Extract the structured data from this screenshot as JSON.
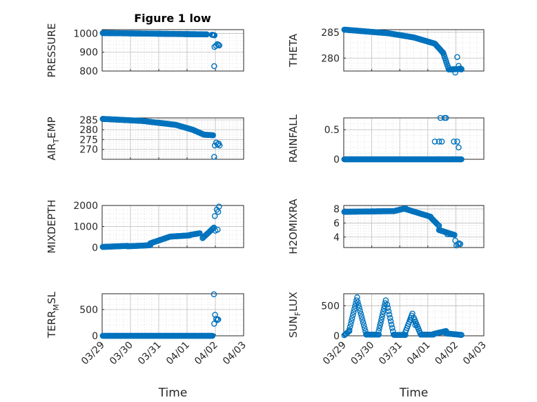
{
  "title": "Figure 1 low",
  "chart_data": [
    {
      "type": "scatter",
      "title": "Figure 1 low",
      "ylabel": "PRESSURE",
      "ylabel_sub": "",
      "ylabel_tail": "",
      "ylim": [
        800,
        1020
      ],
      "yticks": [
        800,
        900,
        1000
      ],
      "xlim": [
        0,
        5
      ],
      "xticks": [
        0,
        1,
        2,
        3,
        4,
        5
      ],
      "xticklabels": [
        "03/29",
        "03/30",
        "03/31",
        "04/01",
        "04/02",
        "04/03"
      ],
      "show_xticklabels": false,
      "xlabel": "",
      "grid": true,
      "segments": [
        {
          "x0": 0.02,
          "x1": 3.7,
          "y0": 1002,
          "y1": 995,
          "n": 190
        },
        {
          "x0": 3.88,
          "x1": 3.97,
          "y0": 993,
          "y1": 990,
          "n": 6
        }
      ],
      "points": [
        [
          3.96,
          826
        ],
        [
          3.97,
          928
        ],
        [
          4.02,
          935
        ],
        [
          4.07,
          943
        ],
        [
          4.11,
          940
        ],
        [
          4.14,
          936
        ]
      ]
    },
    {
      "type": "scatter",
      "title": "",
      "ylabel": "THETA",
      "ylabel_sub": "",
      "ylabel_tail": "",
      "ylim": [
        277.5,
        285.5
      ],
      "yticks": [
        280,
        285
      ],
      "xlim": [
        0,
        5
      ],
      "xticks": [
        0,
        1,
        2,
        3,
        4,
        5
      ],
      "xticklabels": [
        "03/29",
        "03/30",
        "03/31",
        "04/01",
        "04/02",
        "04/03"
      ],
      "show_xticklabels": false,
      "xlabel": "",
      "grid": true,
      "segments": [
        {
          "x0": 0.02,
          "x1": 1.6,
          "y0": 285.5,
          "y1": 284.8,
          "n": 70
        },
        {
          "x0": 1.6,
          "x1": 2.5,
          "y0": 284.8,
          "y1": 284.0,
          "n": 40
        },
        {
          "x0": 2.5,
          "x1": 3.25,
          "y0": 284.0,
          "y1": 282.8,
          "n": 32
        },
        {
          "x0": 3.25,
          "x1": 3.55,
          "y0": 282.8,
          "y1": 281.0,
          "n": 14
        },
        {
          "x0": 3.55,
          "x1": 3.75,
          "y0": 281.0,
          "y1": 277.8,
          "n": 10
        },
        {
          "x0": 3.75,
          "x1": 4.2,
          "y0": 277.8,
          "y1": 277.9,
          "n": 18
        }
      ],
      "points": [
        [
          3.98,
          277.2
        ],
        [
          4.05,
          280.2
        ],
        [
          4.1,
          278.5
        ],
        [
          4.15,
          278.0
        ],
        [
          4.2,
          277.8
        ]
      ]
    },
    {
      "type": "scatter",
      "title": "",
      "ylabel": "AIR",
      "ylabel_sub": "T",
      "ylabel_tail": "EMP",
      "ylim": [
        265,
        286
      ],
      "yticks": [
        270,
        275,
        280,
        285
      ],
      "xlim": [
        0,
        5
      ],
      "xticks": [
        0,
        1,
        2,
        3,
        4,
        5
      ],
      "xticklabels": [
        "03/29",
        "03/30",
        "03/31",
        "04/01",
        "04/02",
        "04/03"
      ],
      "show_xticklabels": false,
      "xlabel": "",
      "grid": true,
      "segments": [
        {
          "x0": 0.02,
          "x1": 1.4,
          "y0": 285.5,
          "y1": 284.5,
          "n": 60
        },
        {
          "x0": 1.4,
          "x1": 2.6,
          "y0": 284.5,
          "y1": 282.5,
          "n": 50
        },
        {
          "x0": 2.6,
          "x1": 3.2,
          "y0": 282.5,
          "y1": 280.0,
          "n": 26
        },
        {
          "x0": 3.2,
          "x1": 3.6,
          "y0": 280.0,
          "y1": 277.5,
          "n": 18
        },
        {
          "x0": 3.6,
          "x1": 3.92,
          "y0": 277.5,
          "y1": 277.2,
          "n": 14
        }
      ],
      "points": [
        [
          3.96,
          266.2
        ],
        [
          3.98,
          272.0
        ],
        [
          4.03,
          273.5
        ],
        [
          4.08,
          272.5
        ],
        [
          4.12,
          273.0
        ],
        [
          4.15,
          272.0
        ]
      ]
    },
    {
      "type": "scatter",
      "title": "",
      "ylabel": "RAINFALL",
      "ylabel_sub": "",
      "ylabel_tail": "",
      "ylim": [
        0,
        0.7
      ],
      "yticks": [
        0,
        0.5
      ],
      "xlim": [
        0,
        5
      ],
      "xticks": [
        0,
        1,
        2,
        3,
        4,
        5
      ],
      "xticklabels": [
        "03/29",
        "03/30",
        "03/31",
        "04/01",
        "04/02",
        "04/03"
      ],
      "show_xticklabels": false,
      "xlabel": "",
      "grid": true,
      "segments": [
        {
          "x0": 0.02,
          "x1": 4.2,
          "y0": 0,
          "y1": 0,
          "n": 210
        }
      ],
      "points": [
        [
          3.25,
          0.3
        ],
        [
          3.4,
          0.3
        ],
        [
          3.5,
          0.3
        ],
        [
          3.45,
          0.7
        ],
        [
          3.6,
          0.7
        ],
        [
          3.65,
          0.7
        ],
        [
          3.93,
          0.3
        ],
        [
          4.05,
          0.3
        ],
        [
          4.1,
          0.2
        ]
      ]
    },
    {
      "type": "scatter",
      "title": "",
      "ylabel": "MIXDEPTH",
      "ylabel_sub": "",
      "ylabel_tail": "",
      "ylim": [
        0,
        2000
      ],
      "yticks": [
        0,
        1000,
        2000
      ],
      "xlim": [
        0,
        5
      ],
      "xticks": [
        0,
        1,
        2,
        3,
        4,
        5
      ],
      "xticklabels": [
        "03/29",
        "03/30",
        "03/31",
        "04/01",
        "04/02",
        "04/03"
      ],
      "show_xticklabels": false,
      "xlabel": "",
      "grid": true,
      "segments": [
        {
          "x0": 0.02,
          "x1": 0.9,
          "y0": 30,
          "y1": 80,
          "n": 35
        },
        {
          "x0": 0.9,
          "x1": 1.7,
          "y0": 60,
          "y1": 110,
          "n": 30
        },
        {
          "x0": 1.7,
          "x1": 2.4,
          "y0": 200,
          "y1": 520,
          "n": 28
        },
        {
          "x0": 2.4,
          "x1": 3.1,
          "y0": 520,
          "y1": 580,
          "n": 26
        },
        {
          "x0": 3.1,
          "x1": 3.45,
          "y0": 600,
          "y1": 680,
          "n": 12
        },
        {
          "x0": 3.55,
          "x1": 3.95,
          "y0": 450,
          "y1": 950,
          "n": 16
        }
      ],
      "points": [
        [
          3.98,
          1500
        ],
        [
          4.05,
          1800
        ],
        [
          4.1,
          1700
        ],
        [
          4.13,
          1950
        ],
        [
          4.0,
          800
        ],
        [
          4.08,
          850
        ]
      ]
    },
    {
      "type": "scatter",
      "title": "",
      "ylabel": "H2OMIXRA",
      "ylabel_sub": "",
      "ylabel_tail": "",
      "ylim": [
        2.5,
        8.5
      ],
      "yticks": [
        4,
        6,
        8
      ],
      "xlim": [
        0,
        5
      ],
      "xticks": [
        0,
        1,
        2,
        3,
        4,
        5
      ],
      "xticklabels": [
        "03/29",
        "03/30",
        "03/31",
        "04/01",
        "04/02",
        "04/03"
      ],
      "show_xticklabels": false,
      "xlabel": "",
      "grid": true,
      "segments": [
        {
          "x0": 0.02,
          "x1": 1.8,
          "y0": 7.6,
          "y1": 7.7,
          "n": 70
        },
        {
          "x0": 1.8,
          "x1": 2.2,
          "y0": 7.7,
          "y1": 8.1,
          "n": 16
        },
        {
          "x0": 2.2,
          "x1": 3.1,
          "y0": 8.0,
          "y1": 6.9,
          "n": 36
        },
        {
          "x0": 3.1,
          "x1": 3.4,
          "y0": 6.8,
          "y1": 5.6,
          "n": 12
        },
        {
          "x0": 3.4,
          "x1": 3.95,
          "y0": 5.0,
          "y1": 4.3,
          "n": 20
        }
      ],
      "points": [
        [
          3.98,
          3.5
        ],
        [
          4.02,
          2.8
        ],
        [
          4.08,
          3.0
        ],
        [
          4.12,
          3.1
        ],
        [
          4.16,
          3.0
        ],
        [
          3.7,
          4.4
        ],
        [
          3.8,
          4.4
        ]
      ]
    },
    {
      "type": "scatter",
      "title": "",
      "ylabel": "TERR",
      "ylabel_sub": "M",
      "ylabel_tail": "SL",
      "ylim": [
        0,
        800
      ],
      "yticks": [
        0,
        500
      ],
      "xlim": [
        0,
        5
      ],
      "xticks": [
        0,
        1,
        2,
        3,
        4,
        5
      ],
      "xticklabels": [
        "03/29",
        "03/30",
        "03/31",
        "04/01",
        "04/02",
        "04/03"
      ],
      "show_xticklabels": true,
      "xlabel": "Time",
      "grid": true,
      "segments": [
        {
          "x0": 0.02,
          "x1": 3.9,
          "y0": 0,
          "y1": 0,
          "n": 200
        }
      ],
      "points": [
        [
          3.95,
          790
        ],
        [
          3.96,
          230
        ],
        [
          3.99,
          400
        ],
        [
          4.03,
          320
        ],
        [
          4.07,
          300
        ],
        [
          4.1,
          310
        ]
      ]
    },
    {
      "type": "scatter",
      "title": "",
      "ylabel": "SUN",
      "ylabel_sub": "F",
      "ylabel_tail": "LUX",
      "ylim": [
        0,
        700
      ],
      "yticks": [
        0,
        500
      ],
      "xlim": [
        0,
        5
      ],
      "xticks": [
        0,
        1,
        2,
        3,
        4,
        5
      ],
      "xticklabels": [
        "03/29",
        "03/30",
        "03/31",
        "04/01",
        "04/02",
        "04/03"
      ],
      "show_xticklabels": true,
      "xlabel": "Time",
      "grid": true,
      "segments": [
        {
          "x0": 0.02,
          "x1": 0.2,
          "y0": 10,
          "y1": 80,
          "n": 6
        },
        {
          "x0": 0.2,
          "x1": 0.48,
          "y0": 100,
          "y1": 640,
          "n": 12
        },
        {
          "x0": 0.5,
          "x1": 0.8,
          "y0": 560,
          "y1": 30,
          "n": 12
        },
        {
          "x0": 0.8,
          "x1": 1.25,
          "y0": 20,
          "y1": 20,
          "n": 14
        },
        {
          "x0": 1.25,
          "x1": 1.5,
          "y0": 80,
          "y1": 590,
          "n": 12
        },
        {
          "x0": 1.55,
          "x1": 1.78,
          "y0": 520,
          "y1": 20,
          "n": 10
        },
        {
          "x0": 1.8,
          "x1": 2.2,
          "y0": 15,
          "y1": 15,
          "n": 14
        },
        {
          "x0": 2.2,
          "x1": 2.45,
          "y0": 60,
          "y1": 370,
          "n": 10
        },
        {
          "x0": 2.5,
          "x1": 2.75,
          "y0": 300,
          "y1": 20,
          "n": 10
        },
        {
          "x0": 2.75,
          "x1": 3.2,
          "y0": 20,
          "y1": 20,
          "n": 14
        },
        {
          "x0": 3.2,
          "x1": 3.65,
          "y0": 30,
          "y1": 80,
          "n": 14
        },
        {
          "x0": 3.65,
          "x1": 4.2,
          "y0": 40,
          "y1": 15,
          "n": 16
        }
      ],
      "points": [
        [
          2.4,
          260
        ],
        [
          2.55,
          180
        ],
        [
          3.5,
          60
        ]
      ]
    }
  ]
}
